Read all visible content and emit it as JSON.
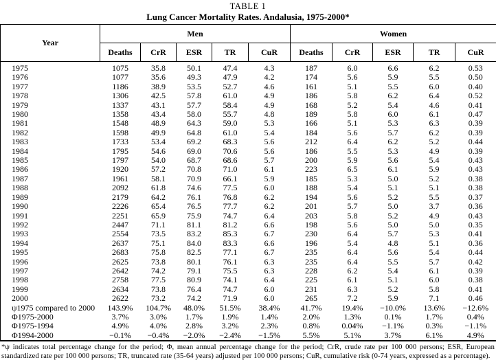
{
  "title": {
    "label": "TABLE 1",
    "subtitle": "Lung Cancer Mortality Rates. Andalusia, 1975-2000*"
  },
  "table": {
    "header": {
      "year": "Year",
      "groups": [
        {
          "label": "Men"
        },
        {
          "label": "Women"
        }
      ],
      "sub": [
        "Deaths",
        "CrR",
        "ESR",
        "TR",
        "CuR",
        "Deaths",
        "CrR",
        "ESR",
        "TR",
        "CuR"
      ]
    },
    "rows": [
      [
        "1975",
        "1075",
        "35.8",
        "50.1",
        "47.4",
        "4.3",
        "187",
        "6.0",
        "6.6",
        "6.2",
        "0.53"
      ],
      [
        "1976",
        "1077",
        "35.6",
        "49.3",
        "47.9",
        "4.2",
        "174",
        "5.6",
        "5.9",
        "5.5",
        "0.50"
      ],
      [
        "1977",
        "1186",
        "38.9",
        "53.5",
        "52.7",
        "4.6",
        "161",
        "5.1",
        "5.5",
        "6.0",
        "0.40"
      ],
      [
        "1978",
        "1306",
        "42.5",
        "57.8",
        "61.0",
        "4.9",
        "186",
        "5.8",
        "6.2",
        "6.4",
        "0.52"
      ],
      [
        "1979",
        "1337",
        "43.1",
        "57.7",
        "58.4",
        "4.9",
        "168",
        "5.2",
        "5.4",
        "4.6",
        "0.41"
      ],
      [
        "1980",
        "1358",
        "43.4",
        "58.0",
        "55.7",
        "4.8",
        "189",
        "5.8",
        "6.0",
        "6.1",
        "0.47"
      ],
      [
        "1981",
        "1548",
        "48.9",
        "64.3",
        "59.0",
        "5.3",
        "166",
        "5.1",
        "5.3",
        "6.3",
        "0.39"
      ],
      [
        "1982",
        "1598",
        "49.9",
        "64.8",
        "61.0",
        "5.4",
        "184",
        "5.6",
        "5.7",
        "6.2",
        "0.39"
      ],
      [
        "1983",
        "1733",
        "53.4",
        "69.2",
        "68.3",
        "5.6",
        "212",
        "6.4",
        "6.2",
        "5.2",
        "0.44"
      ],
      [
        "1984",
        "1795",
        "54.6",
        "69.0",
        "70.6",
        "5.6",
        "186",
        "5.5",
        "5.3",
        "4.9",
        "0.39"
      ],
      [
        "1985",
        "1797",
        "54.0",
        "68.7",
        "68.6",
        "5.7",
        "200",
        "5.9",
        "5.6",
        "5.4",
        "0.43"
      ],
      [
        "1986",
        "1920",
        "57.2",
        "70.8",
        "71.0",
        "6.1",
        "223",
        "6.5",
        "6.1",
        "5.9",
        "0.43"
      ],
      [
        "1987",
        "1961",
        "58.1",
        "70.9",
        "66.1",
        "5.9",
        "185",
        "5.3",
        "5.0",
        "5.2",
        "0.38"
      ],
      [
        "1988",
        "2092",
        "61.8",
        "74.6",
        "77.5",
        "6.0",
        "188",
        "5.4",
        "5.1",
        "5.1",
        "0.38"
      ],
      [
        "1989",
        "2179",
        "64.2",
        "76.1",
        "76.8",
        "6.2",
        "194",
        "5.6",
        "5.2",
        "5.5",
        "0.37"
      ],
      [
        "1990",
        "2226",
        "65.4",
        "76.5",
        "77.7",
        "6.2",
        "201",
        "5.7",
        "5.0",
        "3.7",
        "0.36"
      ],
      [
        "1991",
        "2251",
        "65.9",
        "75.9",
        "74.7",
        "6.4",
        "203",
        "5.8",
        "5.2",
        "4.9",
        "0.43"
      ],
      [
        "1992",
        "2447",
        "71.1",
        "81.1",
        "81.2",
        "6.6",
        "198",
        "5.6",
        "5.0",
        "5.0",
        "0.35"
      ],
      [
        "1993",
        "2554",
        "73.5",
        "83.2",
        "85.3",
        "6.7",
        "230",
        "6.4",
        "5.7",
        "5.3",
        "0.41"
      ],
      [
        "1994",
        "2637",
        "75.1",
        "84.0",
        "83.3",
        "6.6",
        "196",
        "5.4",
        "4.8",
        "5.1",
        "0.36"
      ],
      [
        "1995",
        "2683",
        "75.8",
        "82.5",
        "77.1",
        "6.7",
        "235",
        "6.4",
        "5.6",
        "5.4",
        "0.44"
      ],
      [
        "1996",
        "2625",
        "73.8",
        "80.1",
        "76.1",
        "6.3",
        "235",
        "6.4",
        "5.5",
        "5.7",
        "0.42"
      ],
      [
        "1997",
        "2642",
        "74.2",
        "79.1",
        "75.5",
        "6.3",
        "228",
        "6.2",
        "5.4",
        "6.1",
        "0.39"
      ],
      [
        "1998",
        "2758",
        "77.5",
        "80.9",
        "74.1",
        "6.4",
        "225",
        "6.1",
        "5.1",
        "6.0",
        "0.38"
      ],
      [
        "1999",
        "2634",
        "73.8",
        "76.4",
        "74.7",
        "6.0",
        "231",
        "6.3",
        "5.2",
        "5.8",
        "0.41"
      ],
      [
        "2000",
        "2622",
        "73.2",
        "74.2",
        "71.9",
        "6.0",
        "265",
        "7.2",
        "5.9",
        "7.1",
        "0.46"
      ],
      [
        "ψ1975 compared to 2000",
        "143.9%",
        "104.7%",
        "48.0%",
        "51.5%",
        "38.4%",
        "41.7%",
        "19.4%",
        "−10.0%",
        "13.6%",
        "−12.6%"
      ],
      [
        "Φ1975-2000",
        "3.7%",
        "3.0%",
        "1.7%",
        "1.9%",
        "1.4%",
        "2.0%",
        "1.3%",
        "0.1%",
        "1.7%",
        "0.4%"
      ],
      [
        "Φ1975-1994",
        "4.9%",
        "4.0%",
        "2.8%",
        "3.2%",
        "2.3%",
        "0.8%",
        "0.04%",
        "−1.1%",
        "0.3%",
        "−1.1%"
      ],
      [
        "Φ1994-2000",
        "−0.1%",
        "−0.4%",
        "−2.0%",
        "−2.4%",
        "−1.5%",
        "5.5%",
        "5.1%",
        "3.7%",
        "6.1%",
        "4.9%"
      ]
    ]
  },
  "footnote": "*ψ indicates total percentage change for the period; Φ, mean annual percentage change for the period; CrR, crude rate per 100 000 persons; ESR, European standardized rate per 100 000 persons; TR, truncated rate (35-64 years) adjusted per 100 000 persons; CuR, cumulative risk (0-74 years, expressed as a percentage)."
}
